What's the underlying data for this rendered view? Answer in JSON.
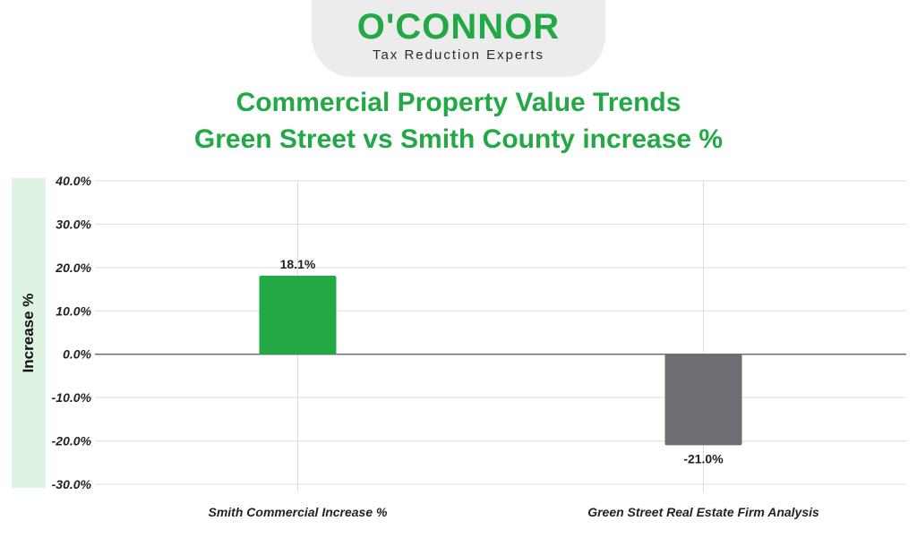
{
  "logo": {
    "wordmark": "O'CONNOR",
    "tagline": "Tax Reduction Experts"
  },
  "colors": {
    "brand": "#22a845",
    "positive": "#22a845",
    "negative": "#6d6e71"
  },
  "chart_data": {
    "type": "bar",
    "title": "Commercial Property Value Trends",
    "subtitle": "Green Street vs Smith County increase %",
    "ylabel": "Increase %",
    "xlabel": "",
    "categories": [
      "Smith Commercial Increase %",
      "Green Street Real Estate Firm Analysis"
    ],
    "values": [
      18.1,
      -21.0
    ],
    "data_labels": [
      "18.1%",
      "-21.0%"
    ],
    "bar_colors": [
      "#22a845",
      "#6d6e71"
    ],
    "ylim": [
      -30,
      40
    ],
    "yticks": [
      40,
      30,
      20,
      10,
      0,
      -10,
      -20,
      -30
    ],
    "ytick_labels": [
      "40.0%",
      "30.0%",
      "20.0%",
      "10.0%",
      "0.0%",
      "-10.0%",
      "-20.0%",
      "-30.0%"
    ],
    "grid": true
  }
}
